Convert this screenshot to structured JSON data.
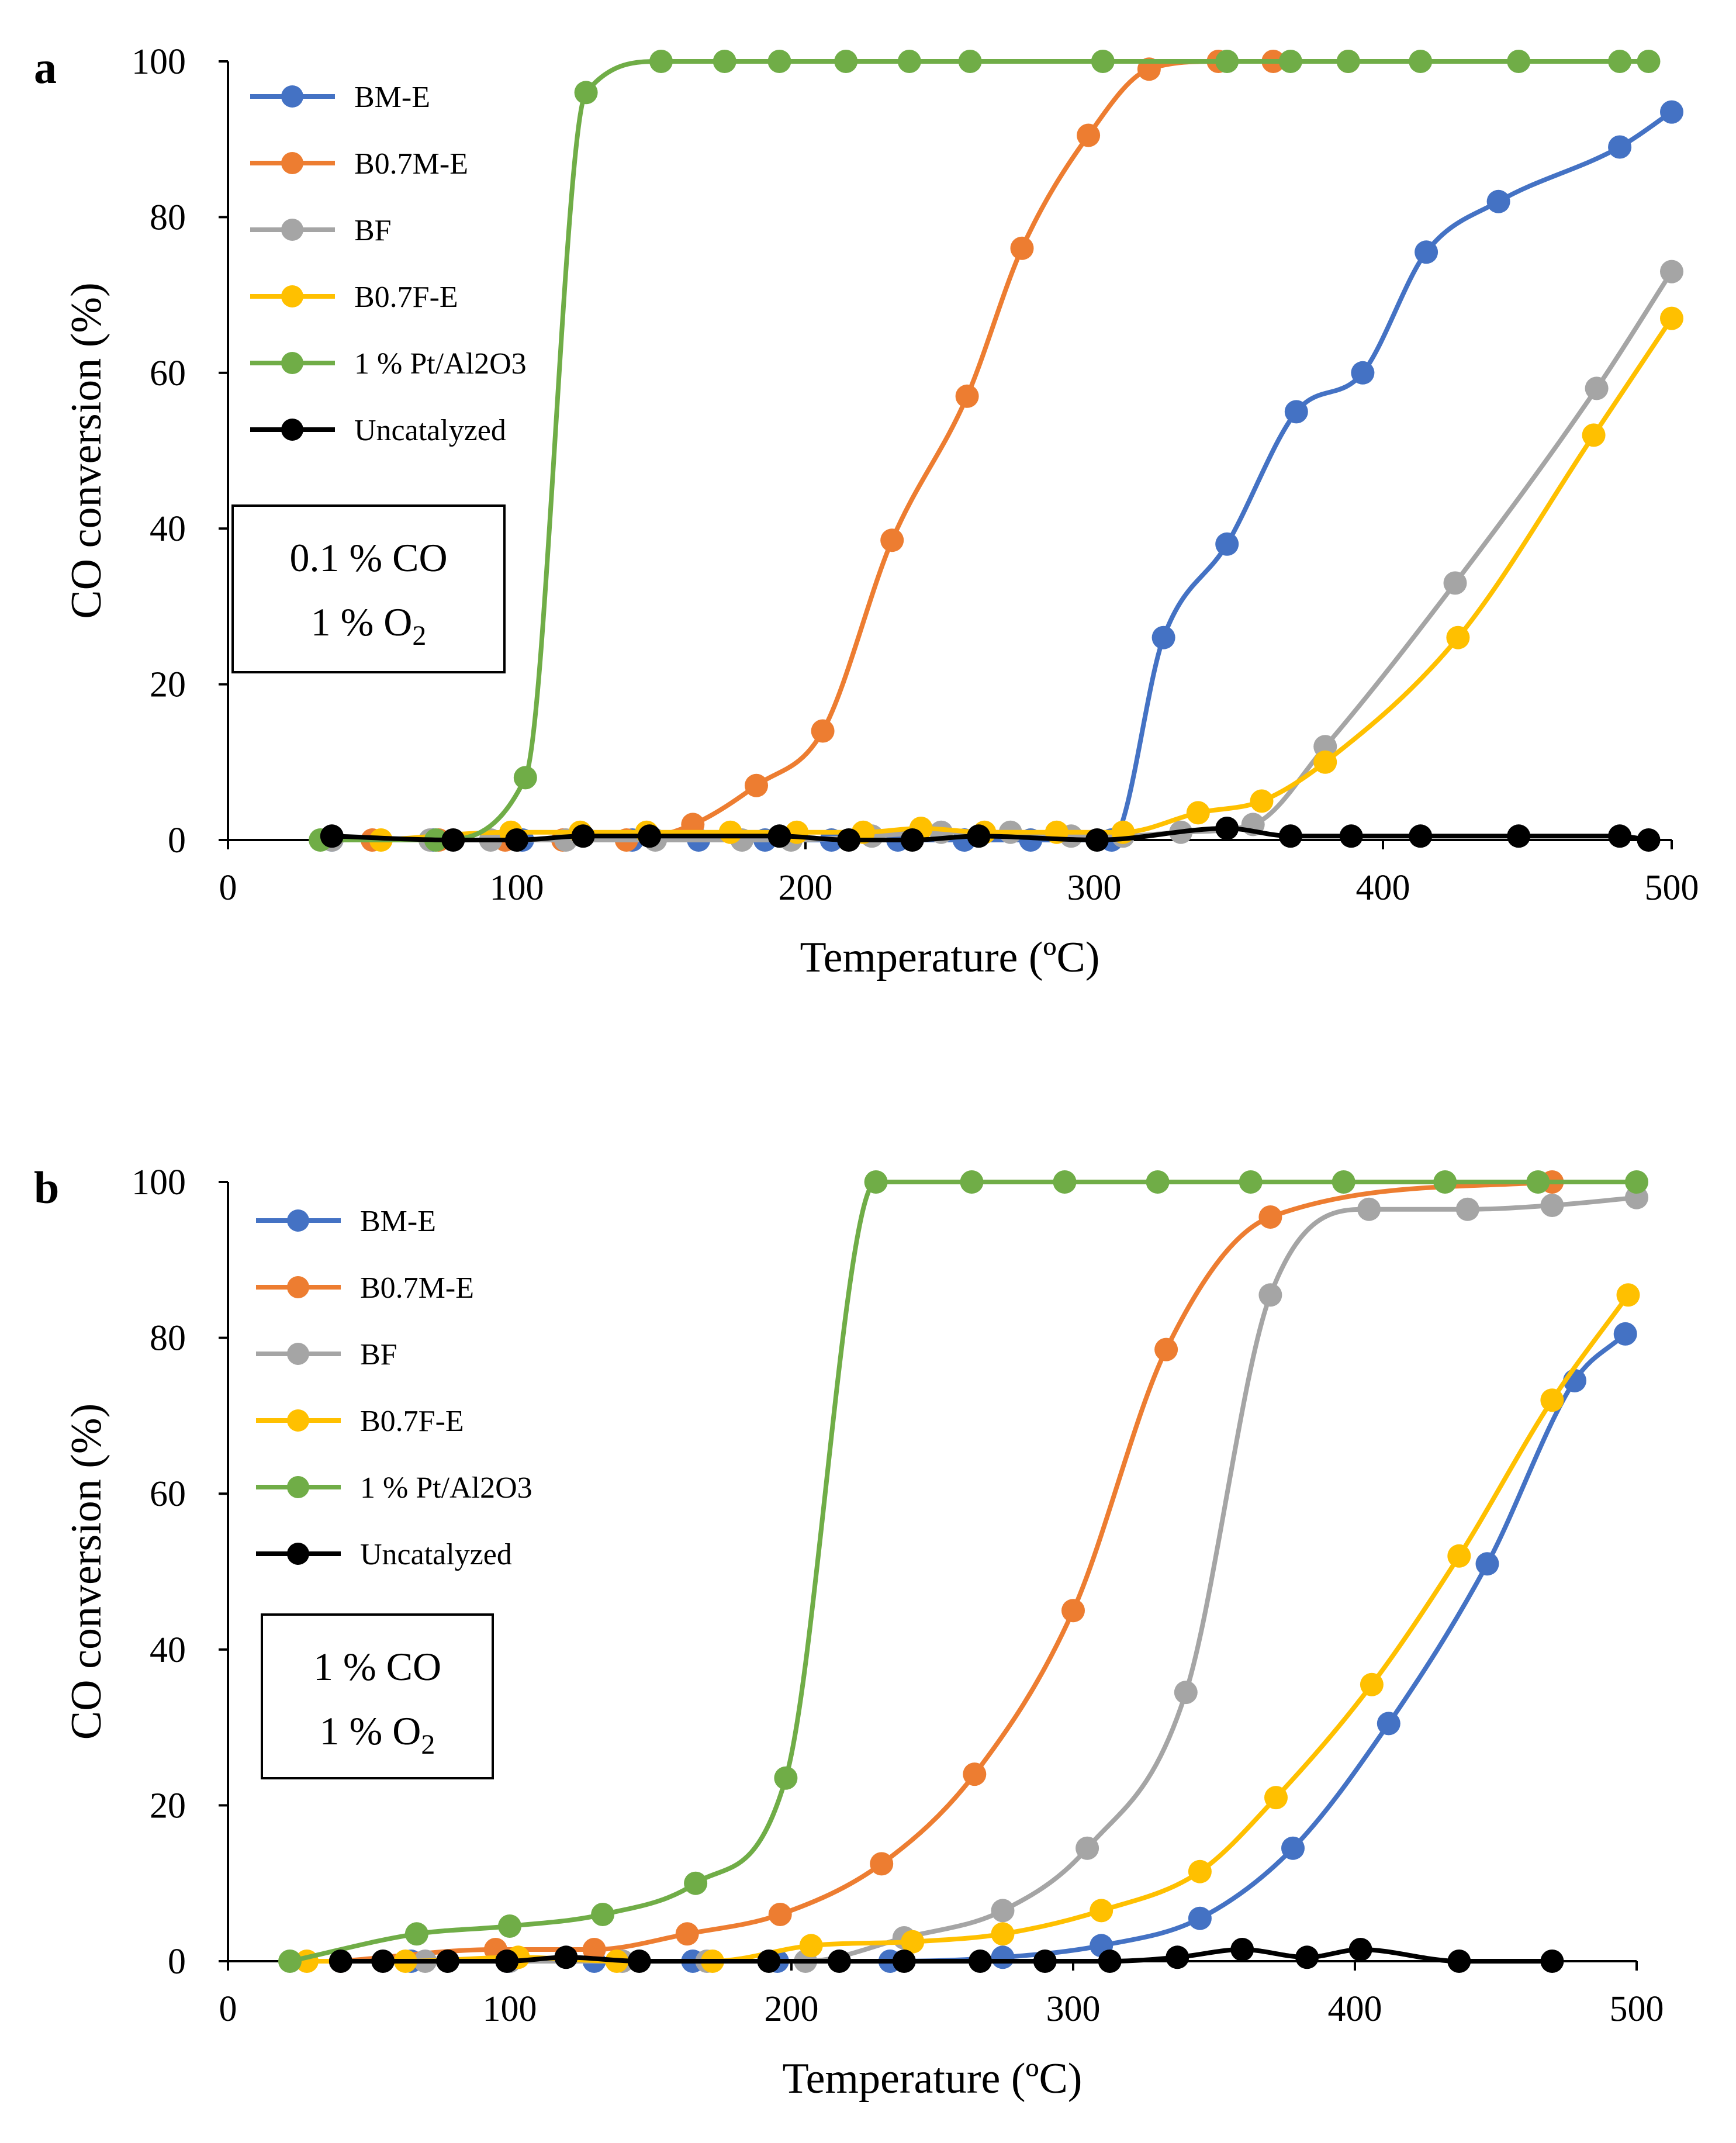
{
  "chart_data": [
    {
      "type": "line",
      "panel_label": "a",
      "xlabel": "Temperature (ºC)",
      "ylabel": "CO conversion (%)",
      "xlim": [
        0,
        500
      ],
      "ylim": [
        0,
        100
      ],
      "xticks": [
        "0",
        "100",
        "200",
        "300",
        "400",
        "500"
      ],
      "yticks": [
        "0",
        "20",
        "40",
        "60",
        "80",
        "100"
      ],
      "grid": false,
      "legend_position": "top-left",
      "annotation": {
        "line1": "0.1 % CO",
        "line2_main": "1 % O",
        "line2_sub": "2"
      },
      "series": [
        {
          "name": "BM-E",
          "color": "#4472C4",
          "x": [
            36,
            71,
            102,
            140,
            163,
            186,
            209,
            232,
            255,
            278,
            306,
            324,
            346,
            370,
            393,
            415,
            440,
            482,
            500
          ],
          "y": [
            0,
            0,
            0,
            0,
            0,
            0,
            0,
            0,
            0,
            0,
            0,
            26,
            38,
            55,
            60,
            75.5,
            82,
            89,
            93.5
          ]
        },
        {
          "name": "B0.7M-E",
          "color": "#ED7D31",
          "x": [
            50,
            73,
            96,
            116,
            138,
            161,
            183,
            206,
            230,
            256,
            275,
            298,
            319,
            343,
            362,
            388
          ],
          "y": [
            0,
            0,
            0,
            0,
            0,
            2,
            7,
            14,
            38.5,
            57,
            76,
            90.5,
            99,
            100,
            100,
            100
          ]
        },
        {
          "name": "BF",
          "color": "#A5A5A5",
          "x": [
            36,
            70,
            91,
            117,
            148,
            178,
            195,
            223,
            247,
            271,
            292,
            310,
            330,
            355,
            380,
            425,
            474,
            500
          ],
          "y": [
            0,
            0,
            0,
            0,
            0,
            0,
            0,
            0.5,
            1,
            1,
            0.5,
            0.5,
            1,
            2,
            12,
            33,
            58,
            73
          ]
        },
        {
          "name": "B0.7F-E",
          "color": "#FFC000",
          "x": [
            53,
            98,
            122,
            145,
            174,
            197,
            220,
            240,
            262,
            287,
            310,
            336,
            358,
            380,
            426,
            473,
            500
          ],
          "y": [
            0,
            1,
            1,
            1,
            1,
            1,
            1,
            1.5,
            1,
            1,
            1,
            3.5,
            5,
            10,
            26,
            52,
            67
          ]
        },
        {
          "name": "1 % Pt/Al2O3",
          "color": "#70AD47",
          "x": [
            32,
            72,
            103,
            124,
            150,
            172,
            191,
            214,
            236,
            257,
            303,
            346,
            368,
            388,
            413,
            447,
            482,
            492
          ],
          "y": [
            0,
            0,
            8,
            96,
            100,
            100,
            100,
            100,
            100,
            100,
            100,
            100,
            100,
            100,
            100,
            100,
            100,
            100
          ]
        },
        {
          "name": "Uncatalyzed",
          "color": "#000000",
          "x": [
            36,
            78,
            100,
            123,
            146,
            191,
            215,
            237,
            260,
            301,
            346,
            368,
            389,
            413,
            447,
            482,
            492
          ],
          "y": [
            0.5,
            0,
            0,
            0.5,
            0.5,
            0.5,
            0,
            0,
            0.5,
            0,
            1.5,
            0.5,
            0.5,
            0.5,
            0.5,
            0.5,
            0
          ]
        }
      ]
    },
    {
      "type": "line",
      "panel_label": "b",
      "xlabel": "Temperature (ºC)",
      "ylabel": "CO conversion (%)",
      "xlim": [
        0,
        500
      ],
      "ylim": [
        0,
        100
      ],
      "xticks": [
        "0",
        "100",
        "200",
        "300",
        "400",
        "500"
      ],
      "yticks": [
        "0",
        "20",
        "40",
        "60",
        "80",
        "100"
      ],
      "grid": false,
      "legend_position": "top-left",
      "annotation": {
        "line1": "1 % CO",
        "line2_main": "1 % O",
        "line2_sub": "2"
      },
      "series": [
        {
          "name": "BM-E",
          "color": "#4472C4",
          "x": [
            40,
            65,
            100,
            130,
            165,
            195,
            235,
            275,
            310,
            345,
            378,
            412,
            447,
            478,
            496
          ],
          "y": [
            0,
            0,
            0,
            0,
            0,
            0,
            0,
            0.5,
            2,
            5.5,
            14.5,
            30.5,
            51,
            74.5,
            80.5
          ]
        },
        {
          "name": "B0.7M-E",
          "color": "#ED7D31",
          "x": [
            40,
            95,
            130,
            163,
            196,
            232,
            265,
            300,
            333,
            370,
            470
          ],
          "y": [
            0,
            1.5,
            1.5,
            3.5,
            6,
            12.5,
            24,
            45,
            78.5,
            95.5,
            100
          ]
        },
        {
          "name": "BF",
          "color": "#A5A5A5",
          "x": [
            40,
            70,
            100,
            140,
            170,
            205,
            240,
            275,
            305,
            340,
            370,
            405,
            440,
            470,
            500
          ],
          "y": [
            0,
            0,
            0,
            0,
            0,
            0,
            3,
            6.5,
            14.5,
            34.5,
            85.5,
            96.5,
            96.5,
            97,
            98
          ]
        },
        {
          "name": "B0.7F-E",
          "color": "#FFC000",
          "x": [
            28,
            63,
            103,
            138,
            172,
            207,
            243,
            275,
            310,
            345,
            372,
            406,
            437,
            470,
            497
          ],
          "y": [
            0,
            0,
            0.5,
            0,
            0,
            2,
            2.5,
            3.5,
            6.5,
            11.5,
            21,
            35.5,
            52,
            72,
            85.5
          ]
        },
        {
          "name": "1 % Pt/Al2O3",
          "color": "#70AD47",
          "x": [
            22,
            67,
            100,
            133,
            166,
            198,
            230,
            264,
            297,
            330,
            363,
            396,
            432,
            465,
            500
          ],
          "y": [
            0,
            3.5,
            4.5,
            6,
            10,
            23.5,
            100,
            100,
            100,
            100,
            100,
            100,
            100,
            100,
            100
          ]
        },
        {
          "name": "Uncatalyzed",
          "color": "#000000",
          "x": [
            40,
            55,
            78,
            99,
            120,
            146,
            192,
            217,
            240,
            267,
            290,
            313,
            337,
            360,
            383,
            402,
            437,
            470
          ],
          "y": [
            0,
            0,
            0,
            0,
            0.5,
            0,
            0,
            0,
            0,
            0,
            0,
            0,
            0.5,
            1.5,
            0.5,
            1.5,
            0,
            0
          ]
        }
      ]
    }
  ]
}
